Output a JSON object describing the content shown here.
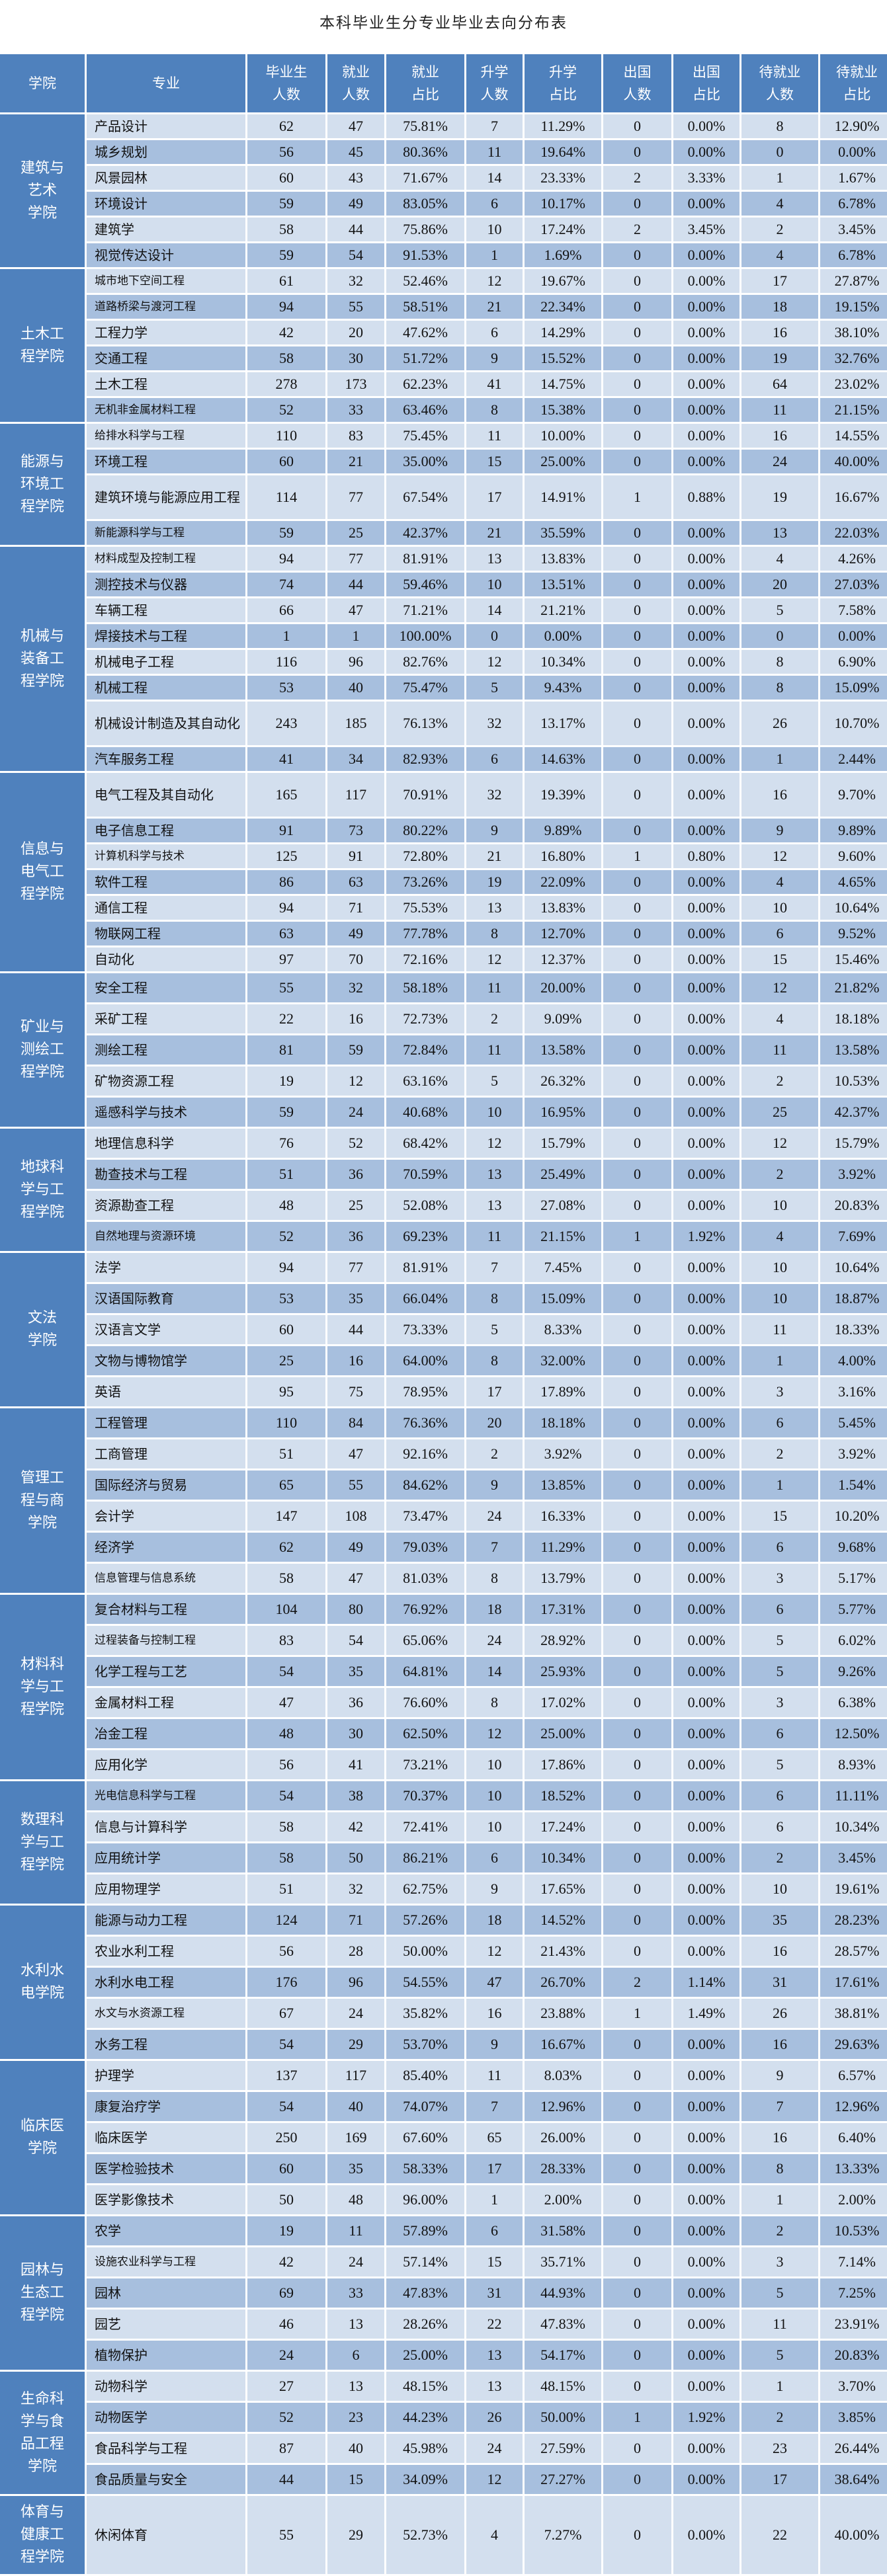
{
  "title": "本科毕业生分专业毕业去向分布表",
  "headers": [
    "学院",
    "专业",
    "毕业生\n人数",
    "就业\n人数",
    "就业\n占比",
    "升学\n人数",
    "升学\n占比",
    "出国\n人数",
    "出国\n占比",
    "待就业\n人数",
    "待就业\n占比"
  ],
  "colors": {
    "header_bg": "#4f81bd",
    "college_bg": "#4f81bd",
    "row_light": "#d3dfee",
    "row_dark": "#a7bfde"
  },
  "colleges": [
    {
      "name": "建筑与艺术学院",
      "rows": [
        [
          "产品设计",
          62,
          47,
          "75.81%",
          7,
          "11.29%",
          0,
          "0.00%",
          8,
          "12.90%"
        ],
        [
          "城乡规划",
          56,
          45,
          "80.36%",
          11,
          "19.64%",
          0,
          "0.00%",
          0,
          "0.00%"
        ],
        [
          "风景园林",
          60,
          43,
          "71.67%",
          14,
          "23.33%",
          2,
          "3.33%",
          1,
          "1.67%"
        ],
        [
          "环境设计",
          59,
          49,
          "83.05%",
          6,
          "10.17%",
          0,
          "0.00%",
          4,
          "6.78%"
        ],
        [
          "建筑学",
          58,
          44,
          "75.86%",
          10,
          "17.24%",
          2,
          "3.45%",
          2,
          "3.45%"
        ],
        [
          "视觉传达设计",
          59,
          54,
          "91.53%",
          1,
          "1.69%",
          0,
          "0.00%",
          4,
          "6.78%"
        ]
      ]
    },
    {
      "name": "土木工程学院",
      "rows": [
        [
          "城市地下空间工程",
          61,
          32,
          "52.46%",
          12,
          "19.67%",
          0,
          "0.00%",
          17,
          "27.87%"
        ],
        [
          "道路桥梁与渡河工程",
          94,
          55,
          "58.51%",
          21,
          "22.34%",
          0,
          "0.00%",
          18,
          "19.15%"
        ],
        [
          "工程力学",
          42,
          20,
          "47.62%",
          6,
          "14.29%",
          0,
          "0.00%",
          16,
          "38.10%"
        ],
        [
          "交通工程",
          58,
          30,
          "51.72%",
          9,
          "15.52%",
          0,
          "0.00%",
          19,
          "32.76%"
        ],
        [
          "土木工程",
          278,
          173,
          "62.23%",
          41,
          "14.75%",
          0,
          "0.00%",
          64,
          "23.02%"
        ],
        [
          "无机非金属材料工程",
          52,
          33,
          "63.46%",
          8,
          "15.38%",
          0,
          "0.00%",
          11,
          "21.15%"
        ]
      ]
    },
    {
      "name": "能源与环境工程学院",
      "rows": [
        [
          "给排水科学与工程",
          110,
          83,
          "75.45%",
          11,
          "10.00%",
          0,
          "0.00%",
          16,
          "14.55%"
        ],
        [
          "环境工程",
          60,
          21,
          "35.00%",
          15,
          "25.00%",
          0,
          "0.00%",
          24,
          "40.00%"
        ],
        [
          "建筑环境与能源应用工程",
          114,
          77,
          "67.54%",
          17,
          "14.91%",
          1,
          "0.88%",
          19,
          "16.67%"
        ],
        [
          "新能源科学与工程",
          59,
          25,
          "42.37%",
          21,
          "35.59%",
          0,
          "0.00%",
          13,
          "22.03%"
        ]
      ]
    },
    {
      "name": "机械与装备工程学院",
      "rows": [
        [
          "材料成型及控制工程",
          94,
          77,
          "81.91%",
          13,
          "13.83%",
          0,
          "0.00%",
          4,
          "4.26%"
        ],
        [
          "测控技术与仪器",
          74,
          44,
          "59.46%",
          10,
          "13.51%",
          0,
          "0.00%",
          20,
          "27.03%"
        ],
        [
          "车辆工程",
          66,
          47,
          "71.21%",
          14,
          "21.21%",
          0,
          "0.00%",
          5,
          "7.58%"
        ],
        [
          "焊接技术与工程",
          1,
          1,
          "100.00%",
          0,
          "0.00%",
          0,
          "0.00%",
          0,
          "0.00%"
        ],
        [
          "机械电子工程",
          116,
          96,
          "82.76%",
          12,
          "10.34%",
          0,
          "0.00%",
          8,
          "6.90%"
        ],
        [
          "机械工程",
          53,
          40,
          "75.47%",
          5,
          "9.43%",
          0,
          "0.00%",
          8,
          "15.09%"
        ],
        [
          "机械设计制造及其自动化",
          243,
          185,
          "76.13%",
          32,
          "13.17%",
          0,
          "0.00%",
          26,
          "10.70%"
        ],
        [
          "汽车服务工程",
          41,
          34,
          "82.93%",
          6,
          "14.63%",
          0,
          "0.00%",
          1,
          "2.44%"
        ]
      ]
    },
    {
      "name": "信息与电气工程学院",
      "rows": [
        [
          "电气工程及其自动化",
          165,
          117,
          "70.91%",
          32,
          "19.39%",
          0,
          "0.00%",
          16,
          "9.70%"
        ],
        [
          "电子信息工程",
          91,
          73,
          "80.22%",
          9,
          "9.89%",
          0,
          "0.00%",
          9,
          "9.89%"
        ],
        [
          "计算机科学与技术",
          125,
          91,
          "72.80%",
          21,
          "16.80%",
          1,
          "0.80%",
          12,
          "9.60%"
        ],
        [
          "软件工程",
          86,
          63,
          "73.26%",
          19,
          "22.09%",
          0,
          "0.00%",
          4,
          "4.65%"
        ],
        [
          "通信工程",
          94,
          71,
          "75.53%",
          13,
          "13.83%",
          0,
          "0.00%",
          10,
          "10.64%"
        ],
        [
          "物联网工程",
          63,
          49,
          "77.78%",
          8,
          "12.70%",
          0,
          "0.00%",
          6,
          "9.52%"
        ],
        [
          "自动化",
          97,
          70,
          "72.16%",
          12,
          "12.37%",
          0,
          "0.00%",
          15,
          "15.46%"
        ]
      ]
    },
    {
      "name": "矿业与测绘工程学院",
      "rows": [
        [
          "安全工程",
          55,
          32,
          "58.18%",
          11,
          "20.00%",
          0,
          "0.00%",
          12,
          "21.82%"
        ],
        [
          "采矿工程",
          22,
          16,
          "72.73%",
          2,
          "9.09%",
          0,
          "0.00%",
          4,
          "18.18%"
        ],
        [
          "测绘工程",
          81,
          59,
          "72.84%",
          11,
          "13.58%",
          0,
          "0.00%",
          11,
          "13.58%"
        ],
        [
          "矿物资源工程",
          19,
          12,
          "63.16%",
          5,
          "26.32%",
          0,
          "0.00%",
          2,
          "10.53%"
        ],
        [
          "遥感科学与技术",
          59,
          24,
          "40.68%",
          10,
          "16.95%",
          0,
          "0.00%",
          25,
          "42.37%"
        ]
      ]
    },
    {
      "name": "地球科学与工程学院",
      "rows": [
        [
          "地理信息科学",
          76,
          52,
          "68.42%",
          12,
          "15.79%",
          0,
          "0.00%",
          12,
          "15.79%"
        ],
        [
          "勘查技术与工程",
          51,
          36,
          "70.59%",
          13,
          "25.49%",
          0,
          "0.00%",
          2,
          "3.92%"
        ],
        [
          "资源勘查工程",
          48,
          25,
          "52.08%",
          13,
          "27.08%",
          0,
          "0.00%",
          10,
          "20.83%"
        ],
        [
          "自然地理与资源环境",
          52,
          36,
          "69.23%",
          11,
          "21.15%",
          1,
          "1.92%",
          4,
          "7.69%"
        ]
      ]
    },
    {
      "name": "文法学院",
      "rows": [
        [
          "法学",
          94,
          77,
          "81.91%",
          7,
          "7.45%",
          0,
          "0.00%",
          10,
          "10.64%"
        ],
        [
          "汉语国际教育",
          53,
          35,
          "66.04%",
          8,
          "15.09%",
          0,
          "0.00%",
          10,
          "18.87%"
        ],
        [
          "汉语言文学",
          60,
          44,
          "73.33%",
          5,
          "8.33%",
          0,
          "0.00%",
          11,
          "18.33%"
        ],
        [
          "文物与博物馆学",
          25,
          16,
          "64.00%",
          8,
          "32.00%",
          0,
          "0.00%",
          1,
          "4.00%"
        ],
        [
          "英语",
          95,
          75,
          "78.95%",
          17,
          "17.89%",
          0,
          "0.00%",
          3,
          "3.16%"
        ]
      ]
    },
    {
      "name": "管理工程与商学院",
      "rows": [
        [
          "工程管理",
          110,
          84,
          "76.36%",
          20,
          "18.18%",
          0,
          "0.00%",
          6,
          "5.45%"
        ],
        [
          "工商管理",
          51,
          47,
          "92.16%",
          2,
          "3.92%",
          0,
          "0.00%",
          2,
          "3.92%"
        ],
        [
          "国际经济与贸易",
          65,
          55,
          "84.62%",
          9,
          "13.85%",
          0,
          "0.00%",
          1,
          "1.54%"
        ],
        [
          "会计学",
          147,
          108,
          "73.47%",
          24,
          "16.33%",
          0,
          "0.00%",
          15,
          "10.20%"
        ],
        [
          "经济学",
          62,
          49,
          "79.03%",
          7,
          "11.29%",
          0,
          "0.00%",
          6,
          "9.68%"
        ],
        [
          "信息管理与信息系统",
          58,
          47,
          "81.03%",
          8,
          "13.79%",
          0,
          "0.00%",
          3,
          "5.17%"
        ]
      ]
    },
    {
      "name": "材料科学与工程学院",
      "rows": [
        [
          "复合材料与工程",
          104,
          80,
          "76.92%",
          18,
          "17.31%",
          0,
          "0.00%",
          6,
          "5.77%"
        ],
        [
          "过程装备与控制工程",
          83,
          54,
          "65.06%",
          24,
          "28.92%",
          0,
          "0.00%",
          5,
          "6.02%"
        ],
        [
          "化学工程与工艺",
          54,
          35,
          "64.81%",
          14,
          "25.93%",
          0,
          "0.00%",
          5,
          "9.26%"
        ],
        [
          "金属材料工程",
          47,
          36,
          "76.60%",
          8,
          "17.02%",
          0,
          "0.00%",
          3,
          "6.38%"
        ],
        [
          "冶金工程",
          48,
          30,
          "62.50%",
          12,
          "25.00%",
          0,
          "0.00%",
          6,
          "12.50%"
        ],
        [
          "应用化学",
          56,
          41,
          "73.21%",
          10,
          "17.86%",
          0,
          "0.00%",
          5,
          "8.93%"
        ]
      ]
    },
    {
      "name": "数理科学与工程学院",
      "rows": [
        [
          "光电信息科学与工程",
          54,
          38,
          "70.37%",
          10,
          "18.52%",
          0,
          "0.00%",
          6,
          "11.11%"
        ],
        [
          "信息与计算科学",
          58,
          42,
          "72.41%",
          10,
          "17.24%",
          0,
          "0.00%",
          6,
          "10.34%"
        ],
        [
          "应用统计学",
          58,
          50,
          "86.21%",
          6,
          "10.34%",
          0,
          "0.00%",
          2,
          "3.45%"
        ],
        [
          "应用物理学",
          51,
          32,
          "62.75%",
          9,
          "17.65%",
          0,
          "0.00%",
          10,
          "19.61%"
        ]
      ]
    },
    {
      "name": "水利水电学院",
      "rows": [
        [
          "能源与动力工程",
          124,
          71,
          "57.26%",
          18,
          "14.52%",
          0,
          "0.00%",
          35,
          "28.23%"
        ],
        [
          "农业水利工程",
          56,
          28,
          "50.00%",
          12,
          "21.43%",
          0,
          "0.00%",
          16,
          "28.57%"
        ],
        [
          "水利水电工程",
          176,
          96,
          "54.55%",
          47,
          "26.70%",
          2,
          "1.14%",
          31,
          "17.61%"
        ],
        [
          "水文与水资源工程",
          67,
          24,
          "35.82%",
          16,
          "23.88%",
          1,
          "1.49%",
          26,
          "38.81%"
        ],
        [
          "水务工程",
          54,
          29,
          "53.70%",
          9,
          "16.67%",
          0,
          "0.00%",
          16,
          "29.63%"
        ]
      ]
    },
    {
      "name": "临床医学院",
      "rows": [
        [
          "护理学",
          137,
          117,
          "85.40%",
          11,
          "8.03%",
          0,
          "0.00%",
          9,
          "6.57%"
        ],
        [
          "康复治疗学",
          54,
          40,
          "74.07%",
          7,
          "12.96%",
          0,
          "0.00%",
          7,
          "12.96%"
        ],
        [
          "临床医学",
          250,
          169,
          "67.60%",
          65,
          "26.00%",
          0,
          "0.00%",
          16,
          "6.40%"
        ],
        [
          "医学检验技术",
          60,
          35,
          "58.33%",
          17,
          "28.33%",
          0,
          "0.00%",
          8,
          "13.33%"
        ],
        [
          "医学影像技术",
          50,
          48,
          "96.00%",
          1,
          "2.00%",
          0,
          "0.00%",
          1,
          "2.00%"
        ]
      ]
    },
    {
      "name": "园林与生态工程学院",
      "rows": [
        [
          "农学",
          19,
          11,
          "57.89%",
          6,
          "31.58%",
          0,
          "0.00%",
          2,
          "10.53%"
        ],
        [
          "设施农业科学与工程",
          42,
          24,
          "57.14%",
          15,
          "35.71%",
          0,
          "0.00%",
          3,
          "7.14%"
        ],
        [
          "园林",
          69,
          33,
          "47.83%",
          31,
          "44.93%",
          0,
          "0.00%",
          5,
          "7.25%"
        ],
        [
          "园艺",
          46,
          13,
          "28.26%",
          22,
          "47.83%",
          0,
          "0.00%",
          11,
          "23.91%"
        ],
        [
          "植物保护",
          24,
          6,
          "25.00%",
          13,
          "54.17%",
          0,
          "0.00%",
          5,
          "20.83%"
        ]
      ]
    },
    {
      "name": "生命科学与食品工程学院",
      "rows": [
        [
          "动物科学",
          27,
          13,
          "48.15%",
          13,
          "48.15%",
          0,
          "0.00%",
          1,
          "3.70%"
        ],
        [
          "动物医学",
          52,
          23,
          "44.23%",
          26,
          "50.00%",
          1,
          "1.92%",
          2,
          "3.85%"
        ],
        [
          "食品科学与工程",
          87,
          40,
          "45.98%",
          24,
          "27.59%",
          0,
          "0.00%",
          23,
          "26.44%"
        ],
        [
          "食品质量与安全",
          44,
          15,
          "34.09%",
          12,
          "27.27%",
          0,
          "0.00%",
          17,
          "38.64%"
        ]
      ]
    },
    {
      "name": "体育与健康工程学院",
      "rows": [
        [
          "休闲体育",
          55,
          29,
          "52.73%",
          4,
          "7.27%",
          0,
          "0.00%",
          22,
          "40.00%"
        ]
      ]
    }
  ],
  "layout": {
    "row_heights": {
      "建筑与艺术学院": [
        36,
        36,
        36,
        36,
        36,
        36
      ],
      "土木工程学院": [
        36,
        36,
        36,
        36,
        36,
        36
      ],
      "能源与环境工程学院": [
        36,
        36,
        66,
        36
      ],
      "机械与装备工程学院": [
        36,
        36,
        36,
        36,
        36,
        36,
        66,
        36
      ],
      "信息与电气工程学院": [
        66,
        36,
        36,
        36,
        36,
        36,
        36
      ],
      "矿业与测绘工程学院": [
        44,
        44,
        44,
        44,
        44
      ],
      "地球科学与工程学院": [
        44,
        44,
        44,
        44
      ],
      "文法学院": [
        44,
        44,
        44,
        44,
        44
      ],
      "管理工程与商学院": [
        44,
        44,
        44,
        44,
        44,
        44
      ],
      "材料科学与工程学院": [
        44,
        44,
        44,
        44,
        44,
        44
      ],
      "数理科学与工程学院": [
        44,
        44,
        44,
        44
      ],
      "水利水电学院": [
        44,
        44,
        44,
        44,
        44
      ],
      "临床医学院": [
        44,
        44,
        44,
        44,
        44
      ],
      "园林与生态工程学院": [
        44,
        44,
        44,
        44,
        44
      ],
      "生命科学与食品工程学院": [
        44,
        44,
        44,
        44
      ],
      "体育与健康工程学院": [
        118
      ]
    },
    "college_line_breaks": {
      "建筑与艺术学院": [
        "建筑与",
        "艺术",
        "学院"
      ],
      "土木工程学院": [
        "土木工",
        "程学院"
      ],
      "能源与环境工程学院": [
        "能源与",
        "环境工",
        "程学院"
      ],
      "机械与装备工程学院": [
        "机械与",
        "装备工",
        "程学院"
      ],
      "信息与电气工程学院": [
        "信息与",
        "电气工",
        "程学院"
      ],
      "矿业与测绘工程学院": [
        "矿业与",
        "测绘工",
        "程学院"
      ],
      "地球科学与工程学院": [
        "地球科",
        "学与工",
        "程学院"
      ],
      "文法学院": [
        "文法",
        "学院"
      ],
      "管理工程与商学院": [
        "管理工",
        "程与商",
        "学院"
      ],
      "材料科学与工程学院": [
        "材料科",
        "学与工",
        "程学院"
      ],
      "数理科学与工程学院": [
        "数理科",
        "学与工",
        "程学院"
      ],
      "水利水电学院": [
        "水利水",
        "电学院"
      ],
      "临床医学院": [
        "临床医",
        "学院"
      ],
      "园林与生态工程学院": [
        "园林与",
        "生态工",
        "程学院"
      ],
      "生命科学与食品工程学院": [
        "生命科",
        "学与食",
        "品工程",
        "学院"
      ],
      "体育与健康工程学院": [
        "体育与",
        "健康工",
        "程学院"
      ]
    }
  }
}
